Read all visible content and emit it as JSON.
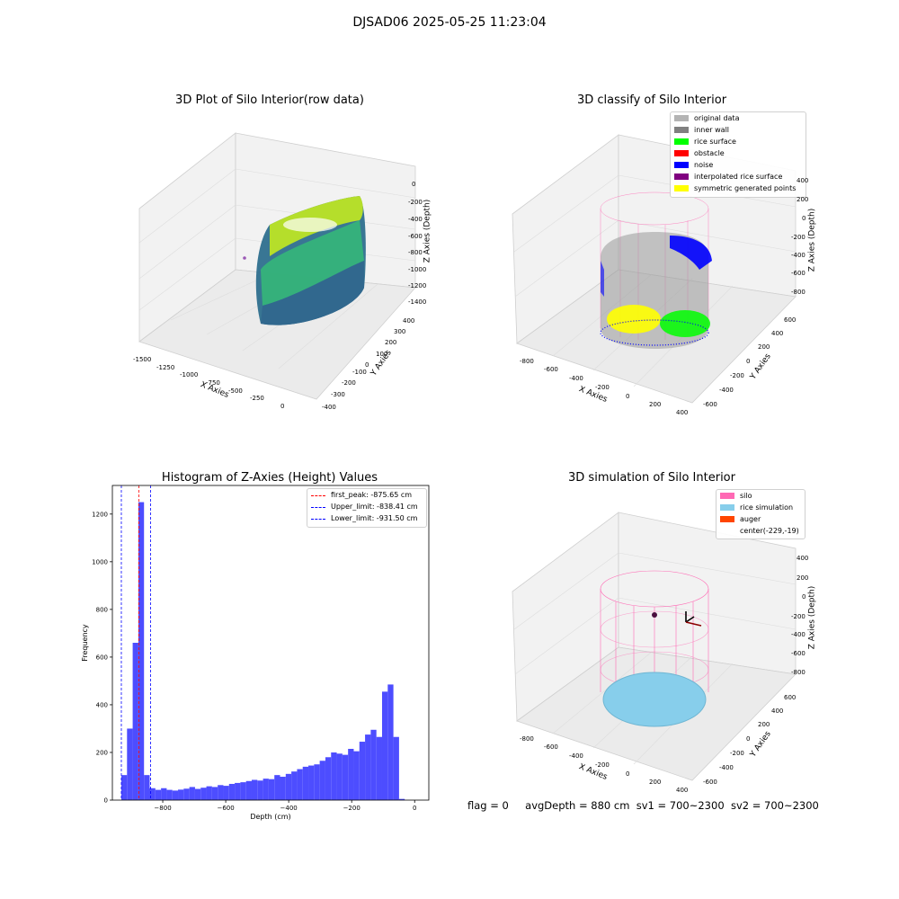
{
  "suptitle": "DJSAD06 2025-05-25 11:23:04",
  "footer": {
    "flag": "flag = 0",
    "avg_depth": "avgDepth = 880 cm",
    "sv1": "sv1 = 700~2300",
    "sv2": "sv2 = 700~2300"
  },
  "chart_data": [
    {
      "type": "scatter",
      "title": "3D Plot of Silo Interior(row data)",
      "xlabel": "X Axies",
      "ylabel": "Y Axies",
      "zlabel": "Z Axies (Depth)",
      "x_ticks": [
        "-1500",
        "-1250",
        "-1000",
        "-750",
        "-500",
        "-250",
        "0"
      ],
      "y_ticks": [
        "-400",
        "-300",
        "-200",
        "-100",
        "0",
        "100",
        "200",
        "300",
        "400"
      ],
      "z_ticks": [
        "-1400",
        "-1200",
        "-1000",
        "-800",
        "-600",
        "-400",
        "-200",
        "0"
      ],
      "colormap": "viridis"
    },
    {
      "type": "scatter",
      "title": "3D classify of Silo Interior",
      "xlabel": "X Axies",
      "ylabel": "Y Axies",
      "zlabel": "Z Axies (Depth)",
      "x_ticks": [
        "-800",
        "-600",
        "-400",
        "-200",
        "0",
        "200",
        "400"
      ],
      "y_ticks": [
        "-600",
        "-400",
        "-200",
        "0",
        "200",
        "400",
        "600"
      ],
      "z_ticks": [
        "-800",
        "-600",
        "-400",
        "-200",
        "0",
        "200",
        "400"
      ],
      "legend_position": "top-right",
      "legend": [
        {
          "label": "original data",
          "color": "#b3b3b3"
        },
        {
          "label": "inner wall",
          "color": "#808080"
        },
        {
          "label": "rice surface",
          "color": "#00ff00"
        },
        {
          "label": "obstacle",
          "color": "#ff0000"
        },
        {
          "label": "noise",
          "color": "#0000ff"
        },
        {
          "label": "interpolated rice surface",
          "color": "#800080"
        },
        {
          "label": "symmetric generated points",
          "color": "#ffff00"
        }
      ]
    },
    {
      "type": "bar",
      "title": "Histogram of Z-Axies (Height) Values",
      "xlabel": "Depth (cm)",
      "ylabel": "Frequency",
      "xlim": [
        -960,
        45
      ],
      "ylim": [
        0,
        1320
      ],
      "x_ticks": [
        -800,
        -600,
        -400,
        -200,
        0
      ],
      "y_ticks": [
        0,
        200,
        400,
        600,
        800,
        1000,
        1200
      ],
      "bin_width": 18,
      "bin_start": -931.5,
      "values": [
        105,
        300,
        660,
        1250,
        105,
        50,
        43,
        50,
        43,
        40,
        44,
        48,
        55,
        47,
        52,
        58,
        55,
        63,
        60,
        68,
        72,
        75,
        80,
        85,
        82,
        90,
        88,
        105,
        98,
        110,
        120,
        130,
        140,
        145,
        150,
        165,
        180,
        200,
        195,
        190,
        215,
        205,
        245,
        275,
        295,
        265,
        455,
        485,
        265,
        5
      ],
      "bar_color": "#4d4dff",
      "lines": [
        {
          "label": "first_peak: -875.65 cm",
          "x": -875.65,
          "color": "#ff0000"
        },
        {
          "label": "Upper_limit: -838.41 cm",
          "x": -838.41,
          "color": "#0000ff"
        },
        {
          "label": "Lower_limit: -931.50 cm",
          "x": -931.5,
          "color": "#0000ff"
        }
      ],
      "legend_position": "top-right"
    },
    {
      "type": "scatter",
      "title": "3D simulation of Silo Interior",
      "xlabel": "X Axies",
      "ylabel": "Y Axies",
      "zlabel": "Z Axies (Depth)",
      "x_ticks": [
        "-800",
        "-600",
        "-400",
        "-200",
        "0",
        "200",
        "400"
      ],
      "y_ticks": [
        "-600",
        "-400",
        "-200",
        "0",
        "200",
        "400",
        "600"
      ],
      "z_ticks": [
        "-800",
        "-600",
        "-400",
        "-200",
        "0",
        "200",
        "400"
      ],
      "legend_position": "top-right",
      "legend": [
        {
          "label": "silo",
          "color": "#ff69b4"
        },
        {
          "label": "rice simulation",
          "color": "#87ceeb"
        },
        {
          "label": "auger",
          "color": "#ff4500"
        },
        {
          "label": "center(-229,-19)",
          "color": ""
        }
      ]
    }
  ]
}
